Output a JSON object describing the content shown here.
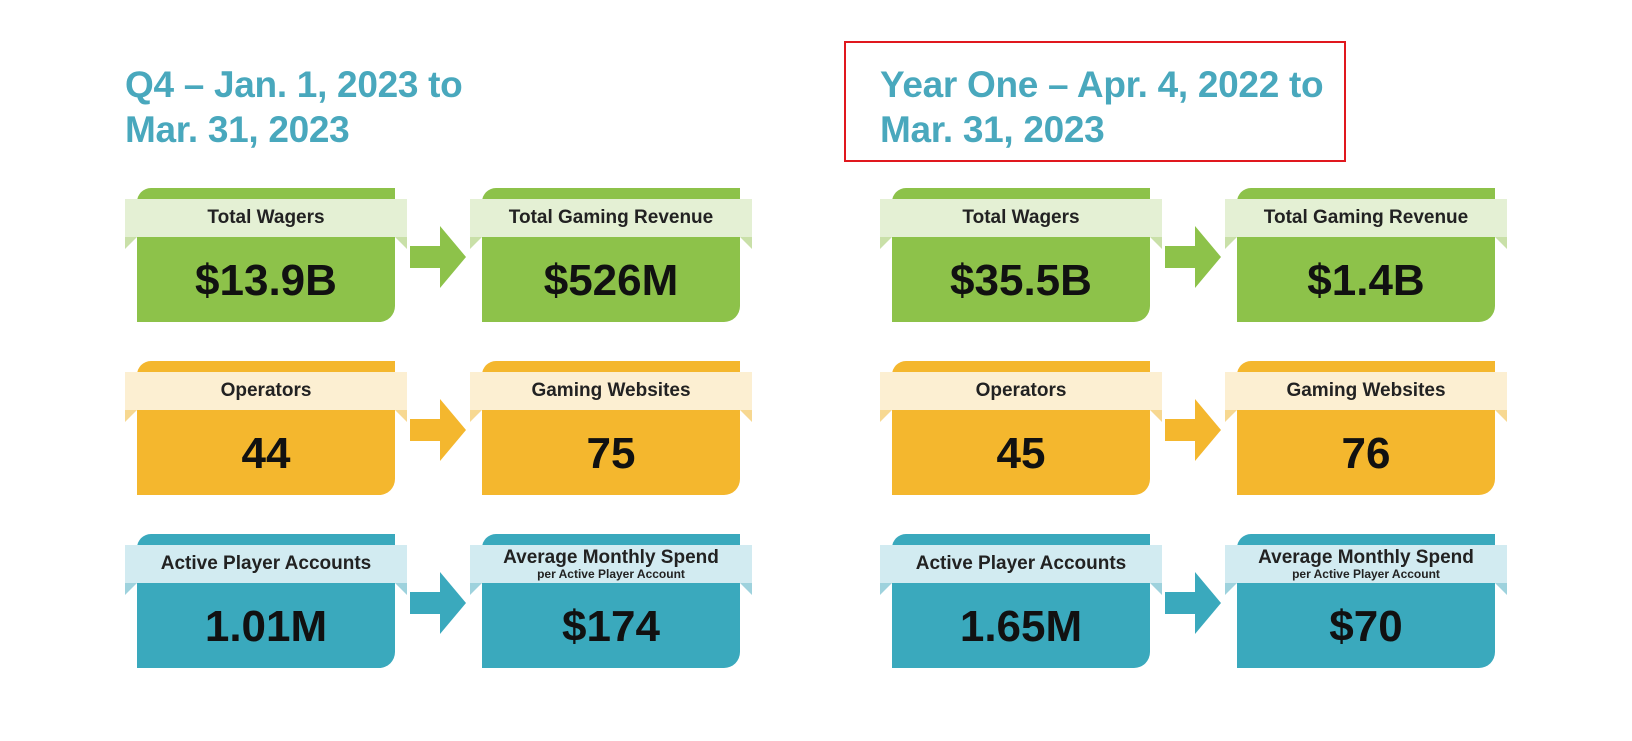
{
  "colors": {
    "title": "#49a8bd",
    "highlight_border": "#e0181e",
    "green": "#8dc24a",
    "orange": "#f4b72e",
    "teal": "#3aa9bd"
  },
  "periods": [
    {
      "title_line1": "Q4 – Jan. 1, 2023 to",
      "title_line2": "Mar. 31, 2023",
      "rows": [
        {
          "color": "green",
          "left": {
            "label": "Total Wagers",
            "sub": "",
            "value": "$13.9B"
          },
          "right": {
            "label": "Total Gaming Revenue",
            "sub": "",
            "value": "$526M"
          }
        },
        {
          "color": "orange",
          "left": {
            "label": "Operators",
            "sub": "",
            "value": "44"
          },
          "right": {
            "label": "Gaming Websites",
            "sub": "",
            "value": "75"
          }
        },
        {
          "color": "teal",
          "left": {
            "label": "Active Player Accounts",
            "sub": "",
            "value": "1.01M"
          },
          "right": {
            "label": "Average Monthly Spend",
            "sub": "per Active Player Account",
            "value": "$174"
          }
        }
      ]
    },
    {
      "title_line1": "Year One – Apr. 4, 2022 to",
      "title_line2": "Mar. 31, 2023",
      "highlighted": true,
      "rows": [
        {
          "color": "green",
          "left": {
            "label": "Total Wagers",
            "sub": "",
            "value": "$35.5B"
          },
          "right": {
            "label": "Total Gaming Revenue",
            "sub": "",
            "value": "$1.4B"
          }
        },
        {
          "color": "orange",
          "left": {
            "label": "Operators",
            "sub": "",
            "value": "45"
          },
          "right": {
            "label": "Gaming Websites",
            "sub": "",
            "value": "76"
          }
        },
        {
          "color": "teal",
          "left": {
            "label": "Active Player Accounts",
            "sub": "",
            "value": "1.65M"
          },
          "right": {
            "label": "Average Monthly Spend",
            "sub": "per Active Player Account",
            "value": "$70"
          }
        }
      ]
    }
  ]
}
